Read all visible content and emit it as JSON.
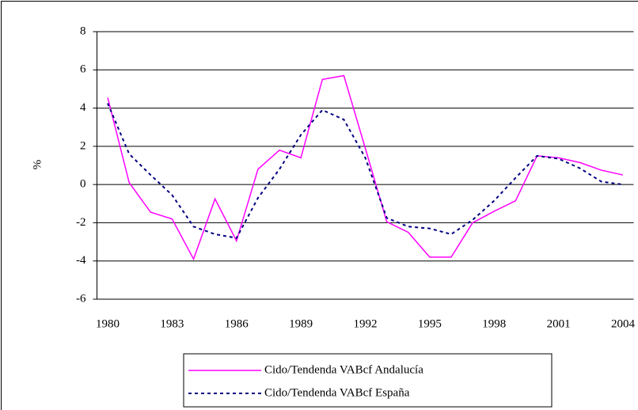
{
  "chart_data": {
    "type": "line",
    "y_label": "%",
    "x": [
      1980,
      1981,
      1982,
      1983,
      1984,
      1985,
      1986,
      1987,
      1988,
      1989,
      1990,
      1991,
      1992,
      1993,
      1994,
      1995,
      1996,
      1997,
      1998,
      1999,
      2000,
      2001,
      2002,
      2003,
      2004
    ],
    "xlim": [
      1979.5,
      2004.5
    ],
    "xticks": [
      1980,
      1983,
      1986,
      1989,
      1992,
      1995,
      1998,
      2001,
      2004
    ],
    "ylim": [
      -6,
      8
    ],
    "yticks": [
      -6,
      -4,
      -2,
      0,
      2,
      4,
      6,
      8
    ],
    "grid": true,
    "legend": "bottom",
    "series": [
      {
        "name": "Cido/Tendenda VABcf Andalucía",
        "color": "#ff00ff",
        "dash": false,
        "values": [
          4.55,
          0.1,
          -1.45,
          -1.8,
          -3.9,
          -0.75,
          -2.95,
          0.8,
          1.8,
          1.4,
          5.5,
          5.7,
          1.9,
          -1.95,
          -2.5,
          -3.8,
          -3.8,
          -2.0,
          -1.4,
          -0.85,
          1.5,
          1.4,
          1.15,
          0.75,
          0.5
        ]
      },
      {
        "name": "Cido/Tendenda VABcf España",
        "color": "#000080",
        "dash": true,
        "values": [
          4.25,
          1.6,
          0.5,
          -0.55,
          -2.2,
          -2.6,
          -2.8,
          -0.7,
          0.8,
          2.6,
          3.9,
          3.4,
          1.4,
          -1.75,
          -2.2,
          -2.3,
          -2.6,
          -1.85,
          -0.85,
          0.35,
          1.5,
          1.35,
          0.85,
          0.15,
          0.0
        ]
      }
    ]
  }
}
